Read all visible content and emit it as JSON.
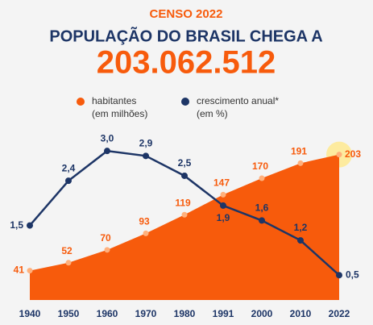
{
  "chart_data": {
    "type": "area-line",
    "kicker": "CENSO 2022",
    "title": "POPULAÇÃO DO BRASIL CHEGA A",
    "headline": "203.062.512",
    "categories": [
      "1940",
      "1950",
      "1960",
      "1970",
      "1980",
      "1991",
      "2000",
      "2010",
      "2022"
    ],
    "series": [
      {
        "name": "habitantes",
        "name_note": "(em milhões)",
        "color": "#f75b0c",
        "values": [
          41,
          52,
          70,
          93,
          119,
          147,
          170,
          191,
          203
        ]
      },
      {
        "name": "crescimento anual*",
        "name_note": "(em %)",
        "color": "#1d3566",
        "axis": "y2",
        "values": [
          1.5,
          2.4,
          3.0,
          2.9,
          2.5,
          1.9,
          1.6,
          1.2,
          0.5
        ],
        "value_labels": [
          "1,5",
          "2,4",
          "3,0",
          "2,9",
          "2,5",
          "1,9",
          "1,6",
          "1,2",
          "0,5"
        ]
      }
    ],
    "ylim": [
      0,
      215
    ],
    "y2lim": [
      0,
      3.1
    ]
  }
}
